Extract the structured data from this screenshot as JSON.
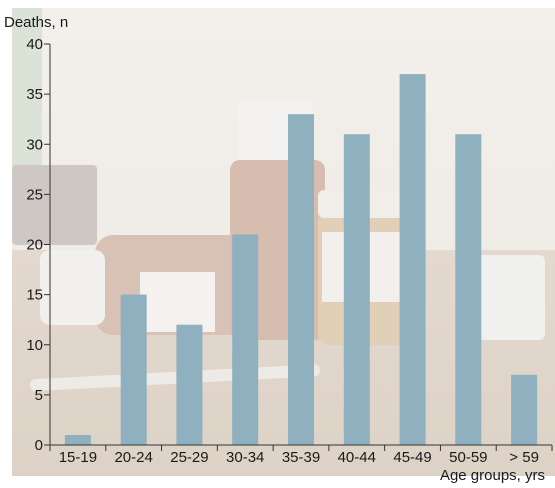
{
  "chart_data": {
    "type": "bar",
    "ylabel": "Deaths, n",
    "xlabel": "Age groups, yrs",
    "categories": [
      "15-19",
      "20-24",
      "25-29",
      "30-34",
      "35-39",
      "40-44",
      "45-49",
      "50-59",
      "> 59"
    ],
    "values": [
      1,
      15,
      12,
      21,
      33,
      31,
      37,
      31,
      7
    ],
    "ylim": [
      0,
      40
    ],
    "yticks": [
      0,
      5,
      10,
      15,
      20,
      25,
      30,
      35,
      40
    ],
    "grid": false,
    "bar_color": "#8fb0bf"
  }
}
